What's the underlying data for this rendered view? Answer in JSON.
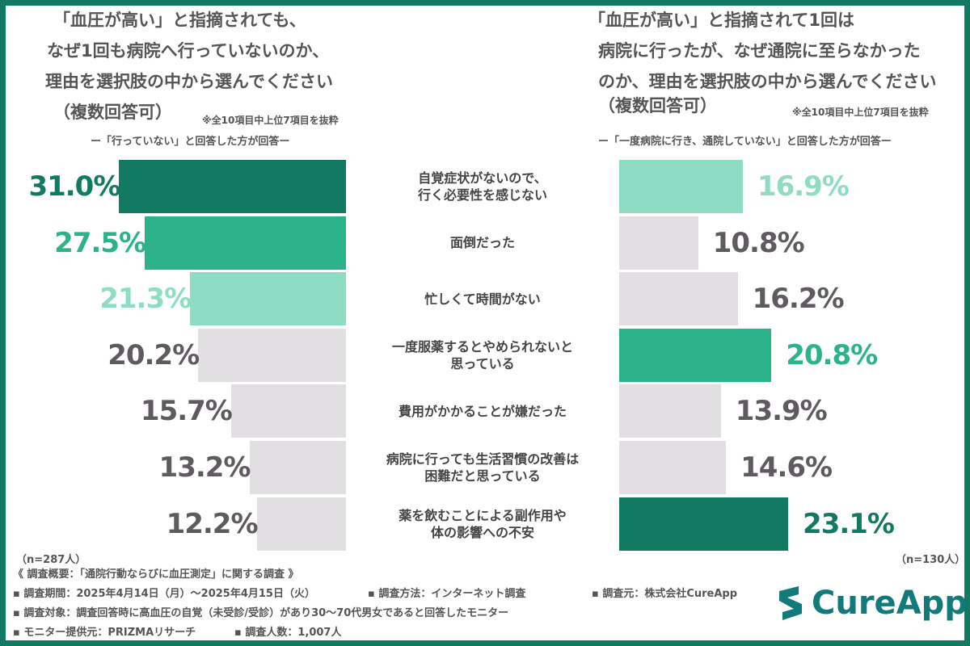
{
  "left_panel": {
    "title_lines": [
      "「血圧が高い」と指摘されても、",
      "なぜ1回も病院へ行っていないのか、",
      "理由を選択肢の中から選んでください",
      "（複数回答可）"
    ],
    "note": "※全10項目中上位7項目を抜粋",
    "respondents": "ー「行っていない」と回答した方が回答ー",
    "n": "（n=287人）"
  },
  "right_panel": {
    "title_lines": [
      "「血圧が高い」と指摘されて1回は",
      "病院に行ったが、なぜ通院に至らなかった",
      "のか、理由を選択肢の中から選んでください",
      "（複数回答可）"
    ],
    "note": "※全10項目中上位7項目を抜粋",
    "respondents": "ー「一度病院に行き、通院していない」と回答した方が回答ー",
    "n": "（n=130人）"
  },
  "colors": {
    "dark": "#127a62",
    "medium": "#2db38c",
    "light": "#8edcc3",
    "gray": "#e2dfe2",
    "gray_text": "#5f5a5f",
    "frame": "#127a62"
  },
  "chart_data": {
    "type": "bar",
    "orientation": "horizontal-butterfly",
    "categories": [
      "自覚症状がないので、\n行く必要性を感じない",
      "面倒だった",
      "忙しくて時間がない",
      "一度服薬するとやめられないと\n思っている",
      "費用がかかることが嫌だった",
      "病院に行っても生活習慣の改善は\n困難だと思っている",
      "薬を飲むことによる副作用や\n体の影響への不安"
    ],
    "unit": "%",
    "series": [
      {
        "values": [
          31.0,
          27.5,
          21.3,
          20.2,
          15.7,
          13.2,
          12.2
        ],
        "labels": [
          "31.0%",
          "27.5%",
          "21.3%",
          "20.2%",
          "15.7%",
          "13.2%",
          "12.2%"
        ],
        "highlight": [
          "dark",
          "medium",
          "light",
          "gray",
          "gray",
          "gray",
          "gray"
        ]
      },
      {
        "values": [
          16.9,
          10.8,
          16.2,
          20.8,
          13.9,
          14.6,
          23.1
        ],
        "labels": [
          "16.9%",
          "10.8%",
          "16.2%",
          "20.8%",
          "13.9%",
          "14.6%",
          "23.1%"
        ],
        "highlight": [
          "light",
          "gray",
          "gray",
          "medium",
          "gray",
          "gray",
          "dark"
        ]
      }
    ]
  },
  "footer": {
    "summary": "《 調査概要：「通院行動ならびに血圧測定」に関する調査 》",
    "period": "▪ 調査期間：2025年4月14日（月）～2025年4月15日（火）",
    "method": "▪ 調査方法：インターネット調査",
    "source": "▪ 調査元：株式会社CureApp",
    "target": "▪ 調査対象：調査回答時に高血圧の自覚（未受診/受診）があり30～70代男女であると回答したモニター",
    "provider": "▪ モニター提供元：PRIZMAリサーチ",
    "count": "▪ 調査人数：1,007人"
  },
  "logo": {
    "text": "CureApp",
    "color": "#127a7a"
  }
}
